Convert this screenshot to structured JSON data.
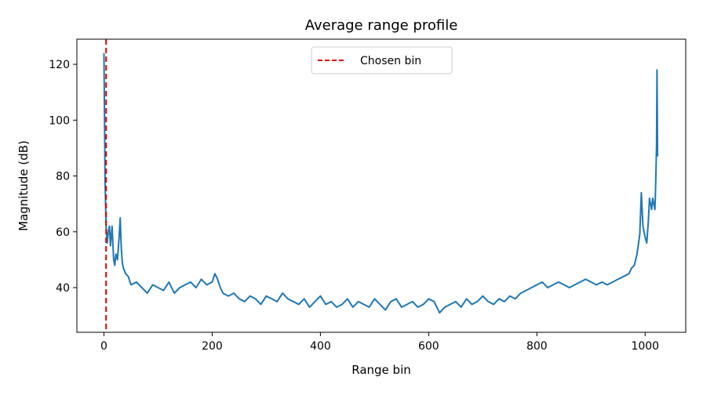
{
  "chart_data": {
    "type": "line",
    "title": "Average range profile",
    "xlabel": "Range bin",
    "ylabel": "Magnitude (dB)",
    "xlim": [
      -50,
      1075
    ],
    "ylim": [
      24,
      129
    ],
    "xticks": [
      0,
      200,
      400,
      600,
      800,
      1000
    ],
    "yticks": [
      40,
      60,
      80,
      100,
      120
    ],
    "grid": false,
    "legend": {
      "placement": "top-center",
      "entries": [
        {
          "label": "Chosen bin"
        }
      ]
    },
    "colors": {
      "series": "#1f77b4",
      "marker": "#e00000"
    },
    "marker_line": {
      "label": "Chosen bin",
      "x": 4,
      "style": "dashed"
    },
    "series": [
      {
        "x": [
          0,
          2,
          4,
          6,
          8,
          10,
          12,
          15,
          18,
          20,
          22,
          25,
          28,
          30,
          32,
          34,
          36,
          40,
          45,
          50,
          60,
          70,
          80,
          90,
          100,
          110,
          120,
          130,
          140,
          150,
          160,
          170,
          180,
          190,
          200,
          205,
          210,
          215,
          220,
          230,
          240,
          250,
          260,
          270,
          280,
          290,
          300,
          310,
          320,
          330,
          340,
          350,
          360,
          370,
          380,
          390,
          400,
          410,
          420,
          430,
          440,
          450,
          460,
          470,
          480,
          490,
          500,
          510,
          520,
          530,
          540,
          550,
          560,
          570,
          580,
          590,
          600,
          610,
          620,
          630,
          640,
          650,
          660,
          670,
          680,
          690,
          700,
          710,
          720,
          730,
          740,
          750,
          760,
          770,
          780,
          790,
          800,
          810,
          820,
          830,
          840,
          850,
          860,
          870,
          880,
          890,
          900,
          910,
          920,
          930,
          940,
          950,
          960,
          970,
          975,
          980,
          985,
          990,
          993,
          996,
          1000,
          1003,
          1006,
          1008,
          1010,
          1012,
          1014,
          1016,
          1018,
          1019,
          1020,
          1021,
          1022,
          1023
        ],
        "y": [
          124,
          78,
          62,
          56,
          60,
          62,
          55,
          62,
          50,
          48,
          52,
          50,
          58,
          65,
          54,
          49,
          47,
          45,
          44,
          41,
          42,
          40,
          38,
          41,
          40,
          39,
          42,
          38,
          40,
          41,
          42,
          40,
          43,
          41,
          42,
          45,
          43,
          40,
          38,
          37,
          38,
          36,
          35,
          37,
          36,
          34,
          37,
          36,
          35,
          38,
          36,
          35,
          34,
          36,
          33,
          35,
          37,
          34,
          35,
          33,
          34,
          36,
          33,
          35,
          34,
          33,
          36,
          34,
          32,
          35,
          36,
          33,
          34,
          35,
          33,
          34,
          36,
          35,
          31,
          33,
          34,
          35,
          33,
          36,
          34,
          35,
          37,
          35,
          34,
          36,
          35,
          37,
          36,
          38,
          39,
          40,
          41,
          42,
          40,
          41,
          42,
          41,
          40,
          41,
          42,
          43,
          42,
          41,
          42,
          41,
          42,
          43,
          44,
          45,
          47,
          48,
          52,
          59,
          74,
          62,
          58,
          56,
          64,
          72,
          70,
          68,
          72,
          70,
          68,
          74,
          82,
          91,
          118,
          87
        ]
      }
    ]
  }
}
